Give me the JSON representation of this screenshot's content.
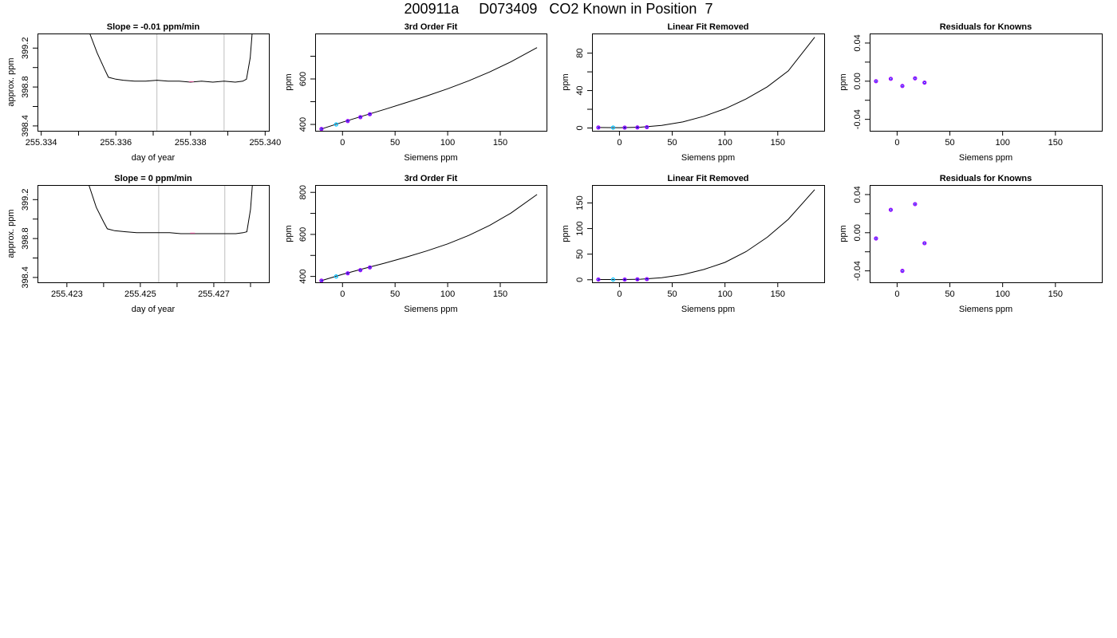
{
  "page": {
    "title": "200911a     D073409   CO2 Known in Position  7"
  },
  "colors": {
    "trace": "#000000",
    "gridline": "#bebebe",
    "point_outline": "#0000ff",
    "point_fill": "#9a00ff",
    "point_alt": "#00bfff",
    "highlight": "#ff69b4"
  },
  "chart_data": [
    {
      "type": "line",
      "title": "Slope =  -0.01  ppm/min",
      "xlabel": "day of year",
      "ylabel": "approx. ppm",
      "xlim": [
        255.3339,
        255.3401
      ],
      "ylim": [
        398.35,
        399.35
      ],
      "xticks": [
        255.334,
        255.335,
        255.336,
        255.337,
        255.338,
        255.339,
        255.34
      ],
      "xtick_labels": [
        "255.334",
        "",
        "255.336",
        "",
        "255.338",
        "",
        "255.340"
      ],
      "yticks": [
        398.4,
        398.6,
        398.8,
        399.0,
        399.2
      ],
      "ytick_labels": [
        "398.4",
        "",
        "398.8",
        "",
        "399.2"
      ],
      "vlines": [
        255.3371,
        255.3389
      ],
      "series": [
        {
          "x": [
            255.3353,
            255.3355,
            255.3357,
            255.3358,
            255.336,
            255.3362,
            255.3365,
            255.3368,
            255.3371,
            255.3374,
            255.3377,
            255.338,
            255.3383,
            255.3386,
            255.3389,
            255.3392,
            255.3394,
            255.3395,
            255.3396,
            255.33965
          ],
          "y": [
            399.35,
            399.15,
            398.98,
            398.9,
            398.88,
            398.87,
            398.86,
            398.86,
            398.87,
            398.86,
            398.86,
            398.85,
            398.86,
            398.85,
            398.86,
            398.85,
            398.86,
            398.88,
            399.1,
            399.35
          ]
        }
      ]
    },
    {
      "type": "line",
      "title": "3rd Order Fit",
      "xlabel": "Siemens ppm",
      "ylabel": "ppm",
      "xlim": [
        -26,
        194
      ],
      "ylim": [
        372,
        800
      ],
      "xticks": [
        0,
        50,
        100,
        150
      ],
      "xtick_labels": [
        "0",
        "50",
        "100",
        "150"
      ],
      "yticks": [
        400,
        500,
        600,
        700
      ],
      "ytick_labels": [
        "400",
        "",
        "600",
        ""
      ],
      "curve": {
        "x": [
          -20,
          0,
          20,
          40,
          60,
          80,
          100,
          120,
          140,
          160,
          185
        ],
        "y": [
          380,
          410,
          438,
          466,
          495,
          525,
          557,
          592,
          631,
          675,
          738
        ]
      },
      "points": [
        {
          "x": -20,
          "y": 380
        },
        {
          "x": -6,
          "y": 400,
          "alt": true
        },
        {
          "x": 5,
          "y": 415
        },
        {
          "x": 17,
          "y": 432
        },
        {
          "x": 26,
          "y": 445
        }
      ]
    },
    {
      "type": "line",
      "title": "Linear Fit Removed",
      "xlabel": "Siemens ppm",
      "ylabel": "ppm",
      "xlim": [
        -26,
        194
      ],
      "ylim": [
        -3,
        101
      ],
      "xticks": [
        0,
        50,
        100,
        150
      ],
      "xtick_labels": [
        "0",
        "50",
        "100",
        "150"
      ],
      "yticks": [
        0,
        20,
        40,
        60,
        80
      ],
      "ytick_labels": [
        "0",
        "",
        "40",
        "",
        "80"
      ],
      "curve": {
        "x": [
          -20,
          0,
          20,
          40,
          60,
          80,
          100,
          120,
          140,
          160,
          185
        ],
        "y": [
          0.5,
          0.3,
          0.8,
          2.8,
          6.5,
          12.5,
          20.5,
          31,
          44,
          61,
          97
        ]
      },
      "points": [
        {
          "x": -20,
          "y": 0.5
        },
        {
          "x": -6,
          "y": 0.4,
          "alt": true
        },
        {
          "x": 5,
          "y": 0.4
        },
        {
          "x": 17,
          "y": 0.6
        },
        {
          "x": 26,
          "y": 0.9
        }
      ]
    },
    {
      "type": "scatter",
      "title": "Residuals for Knowns",
      "xlabel": "Siemens ppm",
      "ylabel": "ppm",
      "xlim": [
        -26,
        194
      ],
      "ylim": [
        -0.052,
        0.05
      ],
      "xticks": [
        0,
        50,
        100,
        150
      ],
      "xtick_labels": [
        "0",
        "50",
        "100",
        "150"
      ],
      "yticks": [
        -0.04,
        -0.02,
        0.0,
        0.02,
        0.04
      ],
      "ytick_labels": [
        "-0.04",
        "",
        "0.00",
        "",
        "0.04"
      ],
      "points": [
        {
          "x": -20,
          "y": 0.0
        },
        {
          "x": -6,
          "y": 0.0025
        },
        {
          "x": 5,
          "y": -0.005
        },
        {
          "x": 17,
          "y": 0.003
        },
        {
          "x": 26,
          "y": -0.0015
        }
      ]
    },
    {
      "type": "line",
      "title": "Slope =  0  ppm/min",
      "xlabel": "day of year",
      "ylabel": "approx. ppm",
      "xlim": [
        255.4222,
        255.4285
      ],
      "ylim": [
        398.35,
        399.35
      ],
      "xticks": [
        255.423,
        255.424,
        255.425,
        255.426,
        255.427,
        255.428
      ],
      "xtick_labels": [
        "255.423",
        "",
        "255.425",
        "",
        "255.427",
        ""
      ],
      "yticks": [
        398.4,
        398.6,
        398.8,
        399.0,
        399.2
      ],
      "ytick_labels": [
        "398.4",
        "",
        "398.8",
        "",
        "399.2"
      ],
      "vlines": [
        255.4255,
        255.4273
      ],
      "series": [
        {
          "x": [
            255.4236,
            255.4238,
            255.424,
            255.4241,
            255.4243,
            255.4246,
            255.4249,
            255.4252,
            255.4255,
            255.4258,
            255.4261,
            255.4264,
            255.4267,
            255.427,
            255.4273,
            255.4276,
            255.4278,
            255.4279,
            255.428,
            255.42805
          ],
          "y": [
            399.35,
            399.12,
            398.97,
            398.9,
            398.88,
            398.87,
            398.86,
            398.86,
            398.86,
            398.86,
            398.85,
            398.85,
            398.85,
            398.85,
            398.85,
            398.85,
            398.86,
            398.87,
            399.1,
            399.35
          ]
        }
      ]
    },
    {
      "type": "line",
      "title": "3rd Order Fit",
      "xlabel": "Siemens ppm",
      "ylabel": "ppm",
      "xlim": [
        -26,
        194
      ],
      "ylim": [
        372,
        835
      ],
      "xticks": [
        0,
        50,
        100,
        150
      ],
      "xtick_labels": [
        "0",
        "50",
        "100",
        "150"
      ],
      "yticks": [
        400,
        500,
        600,
        700,
        800
      ],
      "ytick_labels": [
        "400",
        "",
        "600",
        "",
        "800"
      ],
      "curve": {
        "x": [
          -20,
          0,
          20,
          40,
          60,
          80,
          100,
          120,
          140,
          160,
          185
        ],
        "y": [
          380,
          410,
          437,
          463,
          491,
          521,
          555,
          595,
          643,
          701,
          790
        ]
      },
      "points": [
        {
          "x": -20,
          "y": 380
        },
        {
          "x": -6,
          "y": 400,
          "alt": true
        },
        {
          "x": 5,
          "y": 415
        },
        {
          "x": 17,
          "y": 430
        },
        {
          "x": 26,
          "y": 443
        }
      ]
    },
    {
      "type": "line",
      "title": "Linear Fit Removed",
      "xlabel": "Siemens ppm",
      "ylabel": "ppm",
      "xlim": [
        -26,
        194
      ],
      "ylim": [
        -5,
        185
      ],
      "xticks": [
        0,
        50,
        100,
        150
      ],
      "xtick_labels": [
        "0",
        "50",
        "100",
        "150"
      ],
      "yticks": [
        0,
        50,
        100,
        150
      ],
      "ytick_labels": [
        "0",
        "50",
        "100",
        "150"
      ],
      "curve": {
        "x": [
          -20,
          0,
          20,
          40,
          60,
          80,
          100,
          120,
          140,
          160,
          185
        ],
        "y": [
          0.5,
          0.3,
          1,
          4,
          10,
          20,
          34,
          55,
          83,
          118,
          176
        ]
      },
      "points": [
        {
          "x": -20,
          "y": 0.5
        },
        {
          "x": -6,
          "y": 0.4,
          "alt": true
        },
        {
          "x": 5,
          "y": 0.4
        },
        {
          "x": 17,
          "y": 0.8
        },
        {
          "x": 26,
          "y": 1.2
        }
      ]
    },
    {
      "type": "scatter",
      "title": "Residuals for Knowns",
      "xlabel": "Siemens ppm",
      "ylabel": "ppm",
      "xlim": [
        -26,
        194
      ],
      "ylim": [
        -0.052,
        0.05
      ],
      "xticks": [
        0,
        50,
        100,
        150
      ],
      "xtick_labels": [
        "0",
        "50",
        "100",
        "150"
      ],
      "yticks": [
        -0.04,
        -0.02,
        0.0,
        0.02,
        0.04
      ],
      "ytick_labels": [
        "-0.04",
        "",
        "0.00",
        "",
        "0.04"
      ],
      "points": [
        {
          "x": -20,
          "y": -0.006
        },
        {
          "x": -6,
          "y": 0.024
        },
        {
          "x": 5,
          "y": -0.04
        },
        {
          "x": 17,
          "y": 0.03
        },
        {
          "x": 26,
          "y": -0.011
        }
      ]
    }
  ]
}
